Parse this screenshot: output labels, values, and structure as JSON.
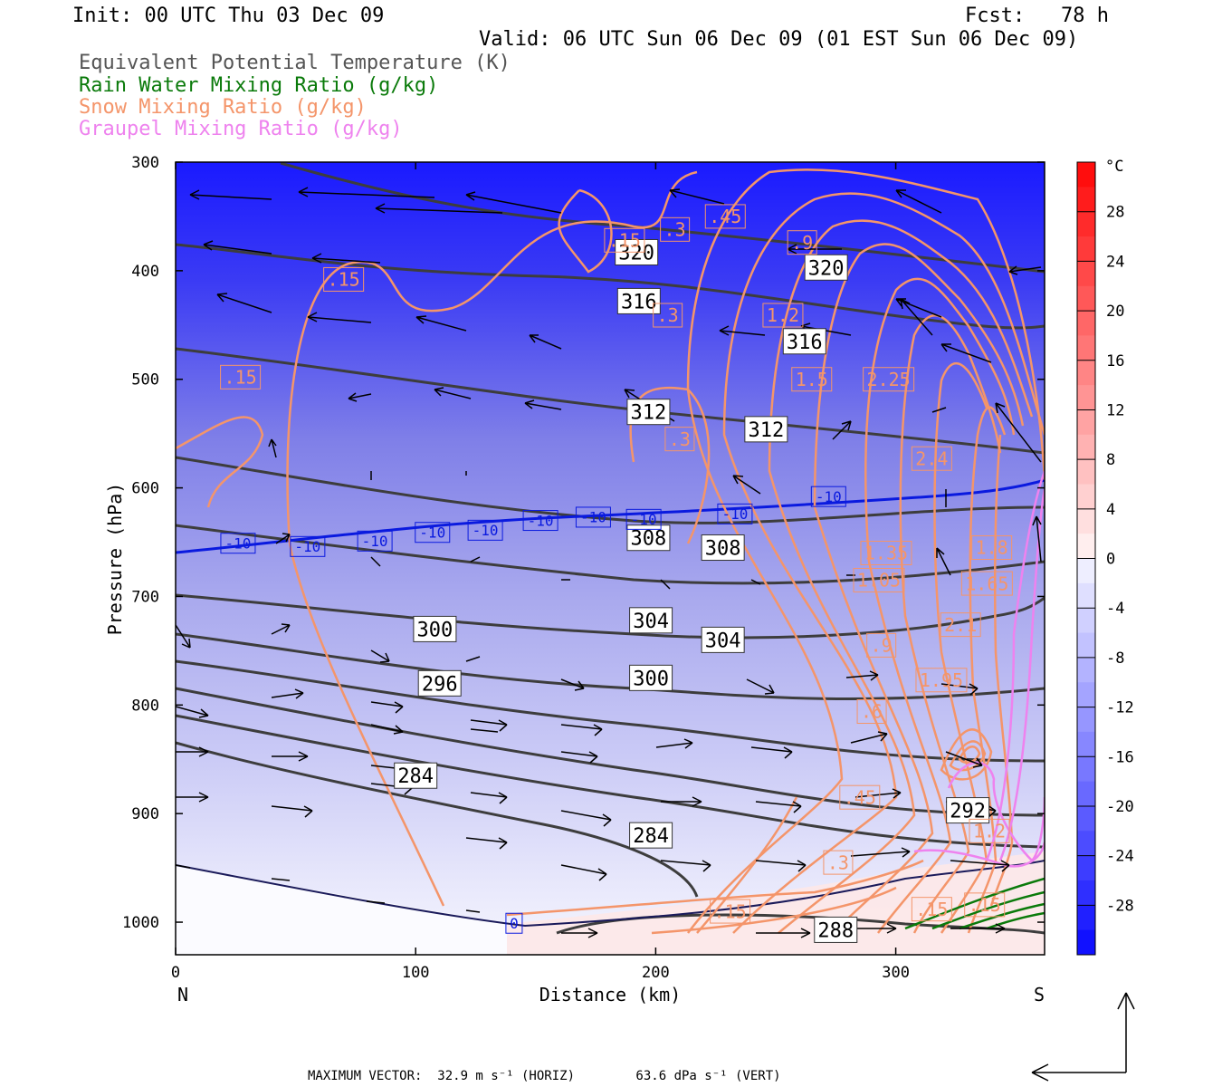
{
  "header": {
    "init": "Init: 00 UTC Thu 03 Dec 09",
    "fcst": "Fcst:   78 h",
    "valid": "Valid: 06 UTC Sun 06 Dec 09 (01 EST Sun 06 Dec 09)",
    "fields": [
      {
        "label": "Equivalent Potential Temperature (K)",
        "color": "#555555"
      },
      {
        "label": "Rain Water Mixing Ratio (g/kg)",
        "color": "#0a7a0a"
      },
      {
        "label": "Snow Mixing Ratio (g/kg)",
        "color": "#f4956a"
      },
      {
        "label": "Graupel Mixing Ratio (g/kg)",
        "color": "#ee82ee"
      }
    ]
  },
  "chart_data": {
    "type": "contour",
    "xlabel": "Distance (km)",
    "ylabel": "Pressure (hPa)",
    "xlim": [
      0,
      362
    ],
    "ylim": [
      1030,
      300
    ],
    "x_ticks": [
      0,
      100,
      200,
      300
    ],
    "y_ticks": [
      300,
      400,
      500,
      600,
      700,
      800,
      900,
      1000
    ],
    "x_end_labels": {
      "left": "N",
      "right": "S"
    },
    "colorbar": {
      "unit": "°C",
      "ticks": [
        28,
        24,
        20,
        16,
        12,
        8,
        4,
        0,
        -4,
        -8,
        -12,
        -16,
        -20,
        -24,
        -28
      ]
    },
    "theta_e_contours": [
      {
        "label": "320",
        "x": 192,
        "p": 383
      },
      {
        "label": "320",
        "x": 271,
        "p": 397
      },
      {
        "label": "316",
        "x": 193,
        "p": 428
      },
      {
        "label": "316",
        "x": 262,
        "p": 465
      },
      {
        "label": "312",
        "x": 197,
        "p": 530
      },
      {
        "label": "312",
        "x": 246,
        "p": 546
      },
      {
        "label": "308",
        "x": 197,
        "p": 646
      },
      {
        "label": "308",
        "x": 228,
        "p": 655
      },
      {
        "label": "304",
        "x": 198,
        "p": 722
      },
      {
        "label": "304",
        "x": 228,
        "p": 740
      },
      {
        "label": "300",
        "x": 108,
        "p": 730
      },
      {
        "label": "300",
        "x": 198,
        "p": 775
      },
      {
        "label": "296",
        "x": 110,
        "p": 780
      },
      {
        "label": "292",
        "x": 330,
        "p": 897
      },
      {
        "label": "284",
        "x": 100,
        "p": 865
      },
      {
        "label": "284",
        "x": 198,
        "p": 920
      },
      {
        "label": "288",
        "x": 275,
        "p": 1007
      }
    ],
    "temperature_labels": [
      {
        "label": "-10",
        "x": 26,
        "p": 651
      },
      {
        "label": "-10",
        "x": 55,
        "p": 654
      },
      {
        "label": "-10",
        "x": 83,
        "p": 649
      },
      {
        "label": "-10",
        "x": 107,
        "p": 641
      },
      {
        "label": "-10",
        "x": 129,
        "p": 639
      },
      {
        "label": "-10",
        "x": 152,
        "p": 630
      },
      {
        "label": "-10",
        "x": 174,
        "p": 627
      },
      {
        "label": "-10",
        "x": 195,
        "p": 629
      },
      {
        "label": "-10",
        "x": 233,
        "p": 624
      },
      {
        "label": "-10",
        "x": 272,
        "p": 608
      },
      {
        "label": "0",
        "x": 141,
        "p": 1001
      }
    ],
    "snow_labels": [
      {
        "label": ".15",
        "x": 70,
        "p": 408
      },
      {
        "label": ".15",
        "x": 27,
        "p": 498
      },
      {
        "label": ".15",
        "x": 187,
        "p": 372
      },
      {
        "label": ".3",
        "x": 208,
        "p": 362
      },
      {
        "label": ".3",
        "x": 205,
        "p": 441
      },
      {
        "label": ".3",
        "x": 210,
        "p": 555
      },
      {
        "label": ".3",
        "x": 276,
        "p": 945
      },
      {
        "label": ".45",
        "x": 229,
        "p": 350
      },
      {
        "label": ".45",
        "x": 285,
        "p": 885
      },
      {
        "label": ".6",
        "x": 290,
        "p": 806
      },
      {
        "label": ".9",
        "x": 261,
        "p": 374
      },
      {
        "label": ".9",
        "x": 294,
        "p": 745
      },
      {
        "label": "1.2",
        "x": 253,
        "p": 441
      },
      {
        "label": "1.5",
        "x": 265,
        "p": 500
      },
      {
        "label": "2.25",
        "x": 297,
        "p": 500
      },
      {
        "label": "2.4",
        "x": 315,
        "p": 573
      },
      {
        "label": "1.8",
        "x": 340,
        "p": 655
      },
      {
        "label": "1.35",
        "x": 296,
        "p": 660
      },
      {
        "label": "1.05",
        "x": 293,
        "p": 685
      },
      {
        "label": "1.65",
        "x": 338,
        "p": 688
      },
      {
        "label": "2.1",
        "x": 327,
        "p": 726
      },
      {
        "label": "1.95",
        "x": 319,
        "p": 777
      },
      {
        "label": "1.2",
        "x": 339,
        "p": 916
      },
      {
        "label": ".15",
        "x": 231,
        "p": 990
      },
      {
        "label": ".15",
        "x": 315,
        "p": 988
      },
      {
        "label": ".15",
        "x": 337,
        "p": 984
      }
    ],
    "vector_scale": "MAXIMUM VECTOR:  32.9 m s⁻¹ (HORIZ)        63.6 dPa s⁻¹ (VERT)"
  }
}
